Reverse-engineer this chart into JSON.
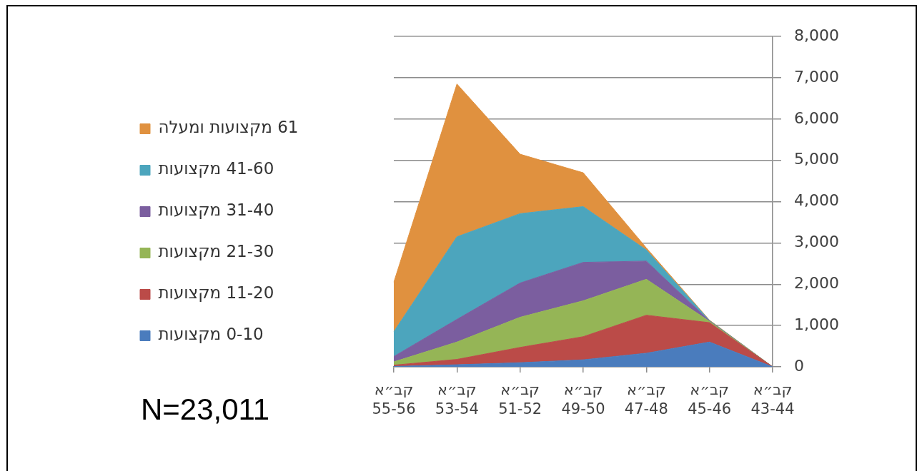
{
  "chart_data": {
    "type": "area",
    "stacked": true,
    "categories": [
      "קב״א 55-56",
      "קב״א 53-54",
      "קב״א 51-52",
      "קב״א 49-50",
      "קב״א 47-48",
      "קב״א 45-46",
      "קב״א 43-44"
    ],
    "series": [
      {
        "name": "0-10 מקצועות",
        "color": "#4a7cbd",
        "values": [
          10,
          50,
          100,
          170,
          330,
          600,
          0
        ]
      },
      {
        "name": "11-20 מקצועות",
        "color": "#bb4b48",
        "values": [
          30,
          130,
          370,
          560,
          920,
          470,
          0
        ]
      },
      {
        "name": "21-30 מקצועות",
        "color": "#95b556",
        "values": [
          80,
          420,
          730,
          870,
          870,
          30,
          0
        ]
      },
      {
        "name": "31-40 מקצועות",
        "color": "#7b5e9f",
        "values": [
          130,
          550,
          830,
          930,
          440,
          10,
          0
        ]
      },
      {
        "name": "41-60 מקצועות",
        "color": "#4ca5bd",
        "values": [
          600,
          2000,
          1680,
          1350,
          270,
          10,
          0
        ]
      },
      {
        "name": "61 מקצועות ומעלה",
        "color": "#e0913f",
        "values": [
          1200,
          3700,
          1440,
          820,
          50,
          10,
          0
        ]
      }
    ],
    "ylim": [
      0,
      8000
    ],
    "yticks": [
      0,
      {
        "value": 1000,
        "label": "1,000"
      },
      {
        "value": 2000,
        "label": "2,000"
      },
      {
        "value": 3000,
        "label": "3,000"
      },
      {
        "value": 4000,
        "label": "4,000"
      },
      {
        "value": 5000,
        "label": "5,000"
      },
      {
        "value": 6000,
        "label": "6,000"
      },
      {
        "value": 7000,
        "label": "7,000"
      },
      {
        "value": 8000,
        "label": "8,000"
      }
    ],
    "grid": "y",
    "legend": "left",
    "annotations": [
      "N=23,011"
    ]
  }
}
